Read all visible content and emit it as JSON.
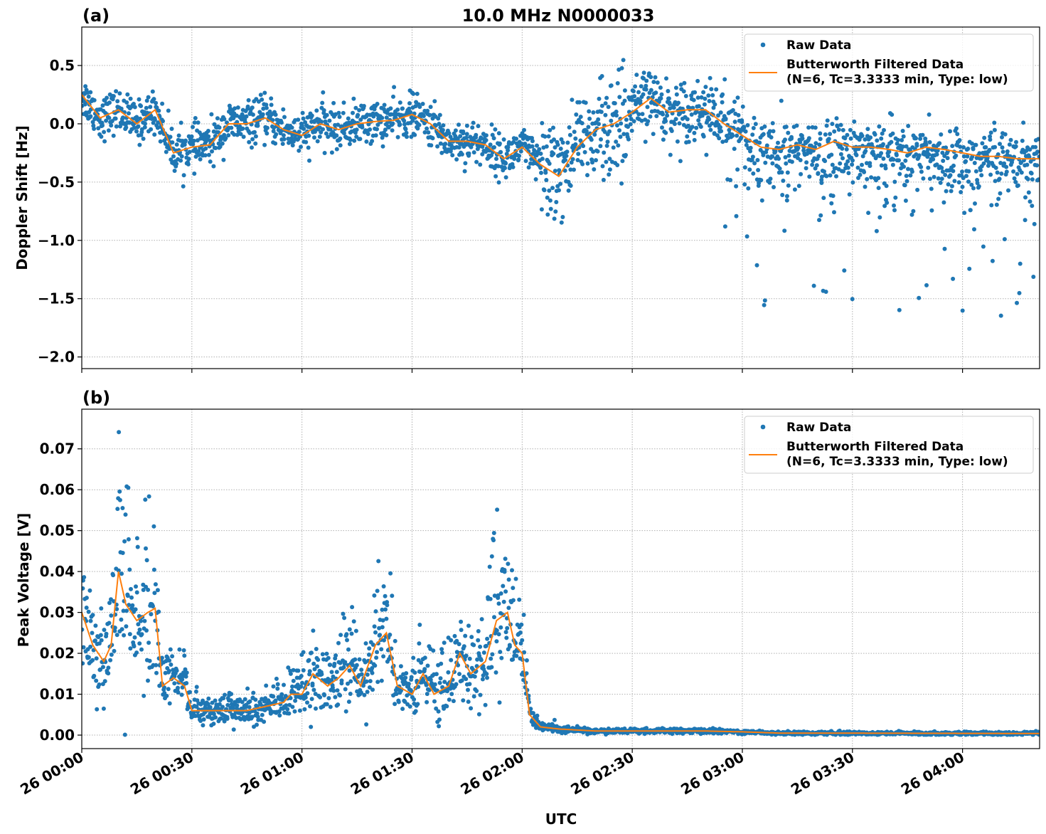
{
  "figure_title": "10.0 MHz N0000033",
  "chart_data": [
    {
      "panel_label": "(a)",
      "type": "scatter+line",
      "ylabel": "Doppler Shift [Hz]",
      "xlabel": "",
      "ylim": [
        -2.1,
        0.83
      ],
      "xlim_minutes_after_26_00_00": [
        0,
        261
      ],
      "yticks": [
        0.5,
        0.0,
        -0.5,
        -1.0,
        -1.5,
        -2.0
      ],
      "ytick_labels": [
        "0.5",
        "0.0",
        "−0.5",
        "−1.0",
        "−1.5",
        "−2.0"
      ],
      "grid": true,
      "legend_position": "top-right",
      "series": [
        {
          "name": "Raw Data",
          "style": "points",
          "color": "#1f77b4"
        },
        {
          "name": "Butterworth Filtered Data\n(N=6, Tc=3.3333 min, Type: low)",
          "name_line1": "Butterworth Filtered Data",
          "name_line2": "(N=6, Tc=3.3333 min, Type: low)",
          "style": "line",
          "color": "#ff7f0e",
          "x_minutes": [
            0,
            5,
            10,
            15,
            20,
            25,
            30,
            35,
            40,
            45,
            50,
            55,
            60,
            65,
            70,
            75,
            80,
            85,
            90,
            95,
            100,
            105,
            110,
            115,
            120,
            125,
            130,
            135,
            140,
            145,
            150,
            155,
            160,
            165,
            170,
            175,
            180,
            185,
            190,
            195,
            200,
            205,
            210,
            215,
            220,
            225,
            230,
            235,
            240,
            245,
            250,
            255,
            261
          ],
          "y": [
            0.25,
            0.05,
            0.12,
            0.0,
            0.12,
            -0.25,
            -0.2,
            -0.18,
            0.0,
            0.0,
            0.05,
            -0.05,
            -0.1,
            0.0,
            -0.05,
            0.0,
            0.02,
            0.03,
            0.08,
            0.0,
            -0.15,
            -0.15,
            -0.18,
            -0.3,
            -0.2,
            -0.35,
            -0.45,
            -0.2,
            -0.05,
            0.0,
            0.1,
            0.22,
            0.1,
            0.12,
            0.12,
            0.0,
            -0.1,
            -0.2,
            -0.22,
            -0.18,
            -0.22,
            -0.15,
            -0.2,
            -0.2,
            -0.22,
            -0.25,
            -0.2,
            -0.22,
            -0.25,
            -0.28,
            -0.28,
            -0.3,
            -0.3
          ]
        }
      ]
    },
    {
      "panel_label": "(b)",
      "type": "scatter+line",
      "ylabel": "Peak Voltage [V]",
      "xlabel": "UTC",
      "ylim": [
        -0.0033,
        0.0797
      ],
      "xlim_minutes_after_26_00_00": [
        0,
        261
      ],
      "yticks": [
        0.0,
        0.01,
        0.02,
        0.03,
        0.04,
        0.05,
        0.06,
        0.07
      ],
      "ytick_labels": [
        "0.00",
        "0.01",
        "0.02",
        "0.03",
        "0.04",
        "0.05",
        "0.06",
        "0.07"
      ],
      "xticks_minutes": [
        0,
        30,
        60,
        90,
        120,
        150,
        180,
        210,
        240
      ],
      "xtick_labels": [
        "26 00:00",
        "26 00:30",
        "26 01:00",
        "26 01:30",
        "26 02:00",
        "26 02:30",
        "26 03:00",
        "26 03:30",
        "26 04:00"
      ],
      "grid": true,
      "legend_position": "top-right",
      "series": [
        {
          "name": "Raw Data",
          "style": "points",
          "color": "#1f77b4"
        },
        {
          "name": "Butterworth Filtered Data\n(N=6, Tc=3.3333 min, Type: low)",
          "name_line1": "Butterworth Filtered Data",
          "name_line2": "(N=6, Tc=3.3333 min, Type: low)",
          "style": "line",
          "color": "#ff7f0e",
          "x_minutes": [
            0,
            3,
            6,
            8,
            10,
            12,
            15,
            18,
            20,
            22,
            25,
            28,
            30,
            35,
            40,
            45,
            50,
            55,
            57,
            60,
            63,
            67,
            70,
            73,
            76,
            80,
            83,
            86,
            90,
            93,
            96,
            100,
            103,
            106,
            110,
            113,
            116,
            118,
            120,
            122,
            125,
            130,
            140,
            160,
            170,
            180,
            190,
            261
          ],
          "y": [
            0.03,
            0.022,
            0.018,
            0.022,
            0.04,
            0.032,
            0.028,
            0.03,
            0.031,
            0.012,
            0.014,
            0.012,
            0.006,
            0.006,
            0.006,
            0.006,
            0.007,
            0.008,
            0.01,
            0.01,
            0.015,
            0.012,
            0.014,
            0.017,
            0.012,
            0.022,
            0.025,
            0.012,
            0.01,
            0.015,
            0.01,
            0.012,
            0.02,
            0.015,
            0.018,
            0.028,
            0.03,
            0.022,
            0.02,
            0.005,
            0.002,
            0.0015,
            0.001,
            0.001,
            0.001,
            0.0008,
            0.0005,
            0.0004
          ]
        }
      ]
    }
  ]
}
